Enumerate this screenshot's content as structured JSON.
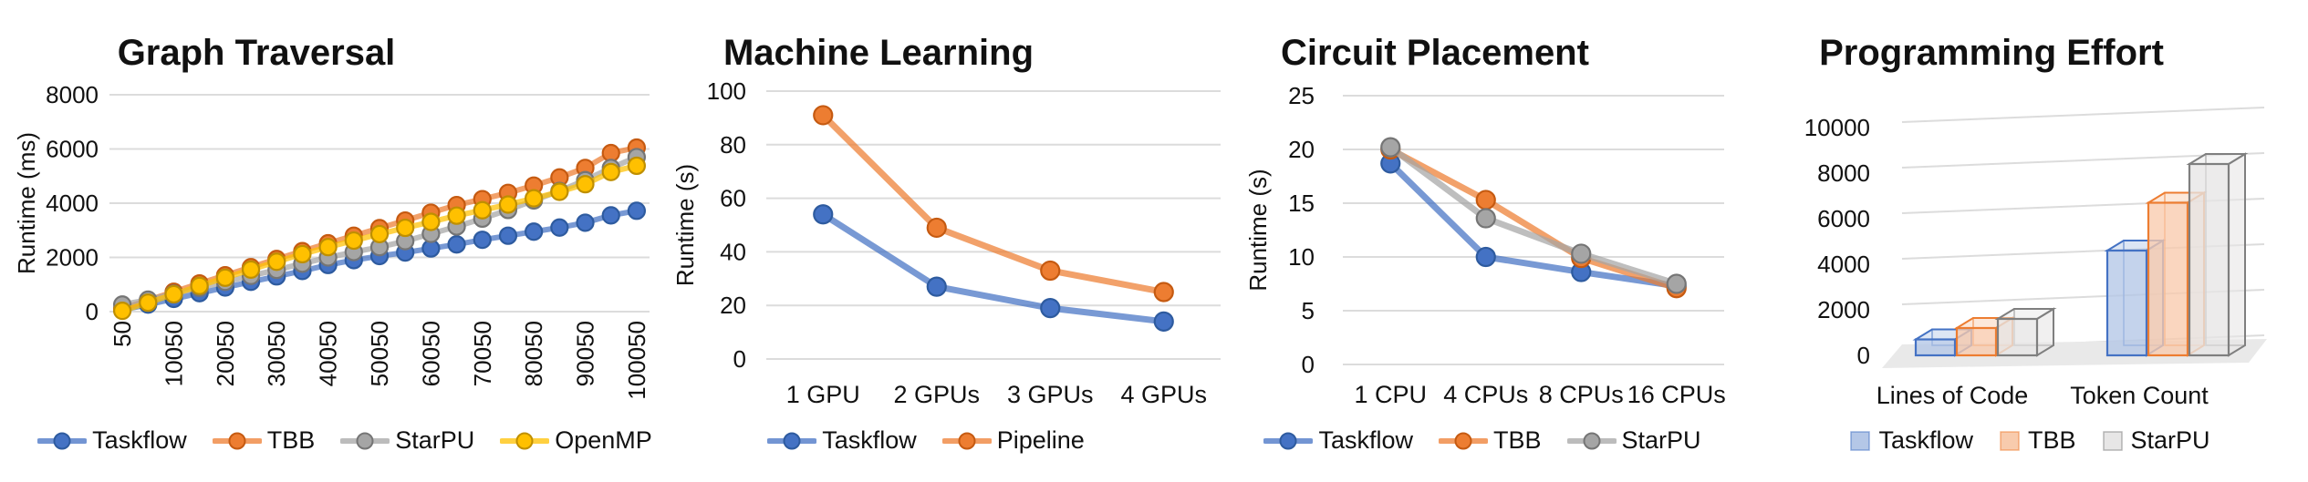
{
  "figure": {
    "background": "#FFFFFF",
    "text_color": "#111111",
    "gridline_color": "#DCDCDC",
    "accent_colors": {
      "blue": "#4472C4",
      "orange": "#ED7D31",
      "gray": "#A5A5A5",
      "yellow": "#FFC000"
    }
  },
  "chart_data": [
    {
      "type": "line",
      "title": "Graph Traversal",
      "ylabel": "Runtime (ms)",
      "ylim": [
        0,
        8000
      ],
      "yticks": [
        0,
        2000,
        4000,
        6000,
        8000
      ],
      "grid": "horizontal",
      "legend_position": "bottom",
      "x": [
        50,
        5050,
        10050,
        15050,
        20050,
        25050,
        30050,
        35050,
        40050,
        45050,
        50050,
        55050,
        60050,
        65050,
        70050,
        75050,
        80050,
        85050,
        90050,
        95050,
        100050
      ],
      "x_tick_labels": [
        "50",
        "10050",
        "20050",
        "30050",
        "40050",
        "50050",
        "60050",
        "70050",
        "80050",
        "90050",
        "100050"
      ],
      "x_tick_every": 2,
      "x_tick_rotation": -90,
      "series": [
        {
          "name": "Taskflow",
          "color": "#4472C4",
          "edge": "#2E5B9F",
          "values": [
            60,
            260,
            470,
            680,
            890,
            1100,
            1300,
            1500,
            1720,
            1900,
            2050,
            2180,
            2330,
            2480,
            2650,
            2800,
            2950,
            3100,
            3280,
            3550,
            3720
          ]
        },
        {
          "name": "TBB",
          "color": "#ED7D31",
          "edge": "#C55A11",
          "values": [
            110,
            420,
            730,
            1040,
            1340,
            1640,
            1940,
            2230,
            2520,
            2800,
            3080,
            3360,
            3650,
            3930,
            4150,
            4380,
            4650,
            4950,
            5300,
            5850,
            6050
          ]
        },
        {
          "name": "StarPU",
          "color": "#A5A5A5",
          "edge": "#757575",
          "values": [
            260,
            440,
            660,
            880,
            1100,
            1320,
            1540,
            1770,
            2000,
            2200,
            2380,
            2600,
            2870,
            3140,
            3430,
            3750,
            4100,
            4450,
            4850,
            5300,
            5700
          ]
        },
        {
          "name": "OpenMP",
          "color": "#FFC000",
          "edge": "#BF8F00",
          "values": [
            30,
            330,
            640,
            950,
            1250,
            1550,
            1840,
            2120,
            2380,
            2620,
            2860,
            3090,
            3310,
            3540,
            3740,
            3950,
            4180,
            4420,
            4700,
            5150,
            5380
          ]
        }
      ]
    },
    {
      "type": "line",
      "title": "Machine Learning",
      "ylabel": "Runtime (s)",
      "ylim": [
        0,
        100
      ],
      "yticks": [
        0,
        20,
        40,
        60,
        80,
        100
      ],
      "grid": "horizontal",
      "legend_position": "bottom",
      "categories": [
        "1 GPU",
        "2 GPUs",
        "3 GPUs",
        "4 GPUs"
      ],
      "series": [
        {
          "name": "Taskflow",
          "color": "#4472C4",
          "edge": "#2E5B9F",
          "values": [
            54,
            27,
            19,
            14
          ]
        },
        {
          "name": "Pipeline",
          "color": "#ED7D31",
          "edge": "#C55A11",
          "values": [
            91,
            49,
            33,
            25
          ]
        }
      ]
    },
    {
      "type": "line",
      "title": "Circuit Placement",
      "ylabel": "Runtime (s)",
      "ylim": [
        0,
        25
      ],
      "yticks": [
        0,
        5,
        10,
        15,
        20,
        25
      ],
      "grid": "horizontal",
      "legend_position": "bottom",
      "categories": [
        "1 CPU",
        "4 CPUs",
        "8 CPUs",
        "16 CPUs"
      ],
      "series": [
        {
          "name": "Taskflow",
          "color": "#4472C4",
          "edge": "#2E5B9F",
          "values": [
            18.7,
            10.0,
            8.6,
            7.3
          ]
        },
        {
          "name": "TBB",
          "color": "#ED7D31",
          "edge": "#C55A11",
          "values": [
            20.0,
            15.3,
            9.9,
            7.1
          ]
        },
        {
          "name": "StarPU",
          "color": "#A5A5A5",
          "edge": "#757575",
          "values": [
            20.2,
            13.6,
            10.3,
            7.5
          ]
        }
      ]
    },
    {
      "type": "bar3d",
      "title": "Programming Effort",
      "ylabel": "",
      "ylim": [
        0,
        10000
      ],
      "yticks": [
        0,
        2000,
        4000,
        6000,
        8000,
        10000
      ],
      "grid": "horizontal",
      "legend_position": "bottom",
      "categories": [
        "Lines of Code",
        "Token Count"
      ],
      "series": [
        {
          "name": "Taskflow",
          "color": "#4472C4",
          "fill": "#B4C7E7",
          "values": [
            700,
            4600
          ]
        },
        {
          "name": "TBB",
          "color": "#ED7D31",
          "fill": "#F8CBAD",
          "values": [
            1200,
            6700
          ]
        },
        {
          "name": "StarPU",
          "color": "#7F7F7F",
          "fill": "#E7E6E6",
          "values": [
            1600,
            8400
          ]
        }
      ]
    }
  ]
}
